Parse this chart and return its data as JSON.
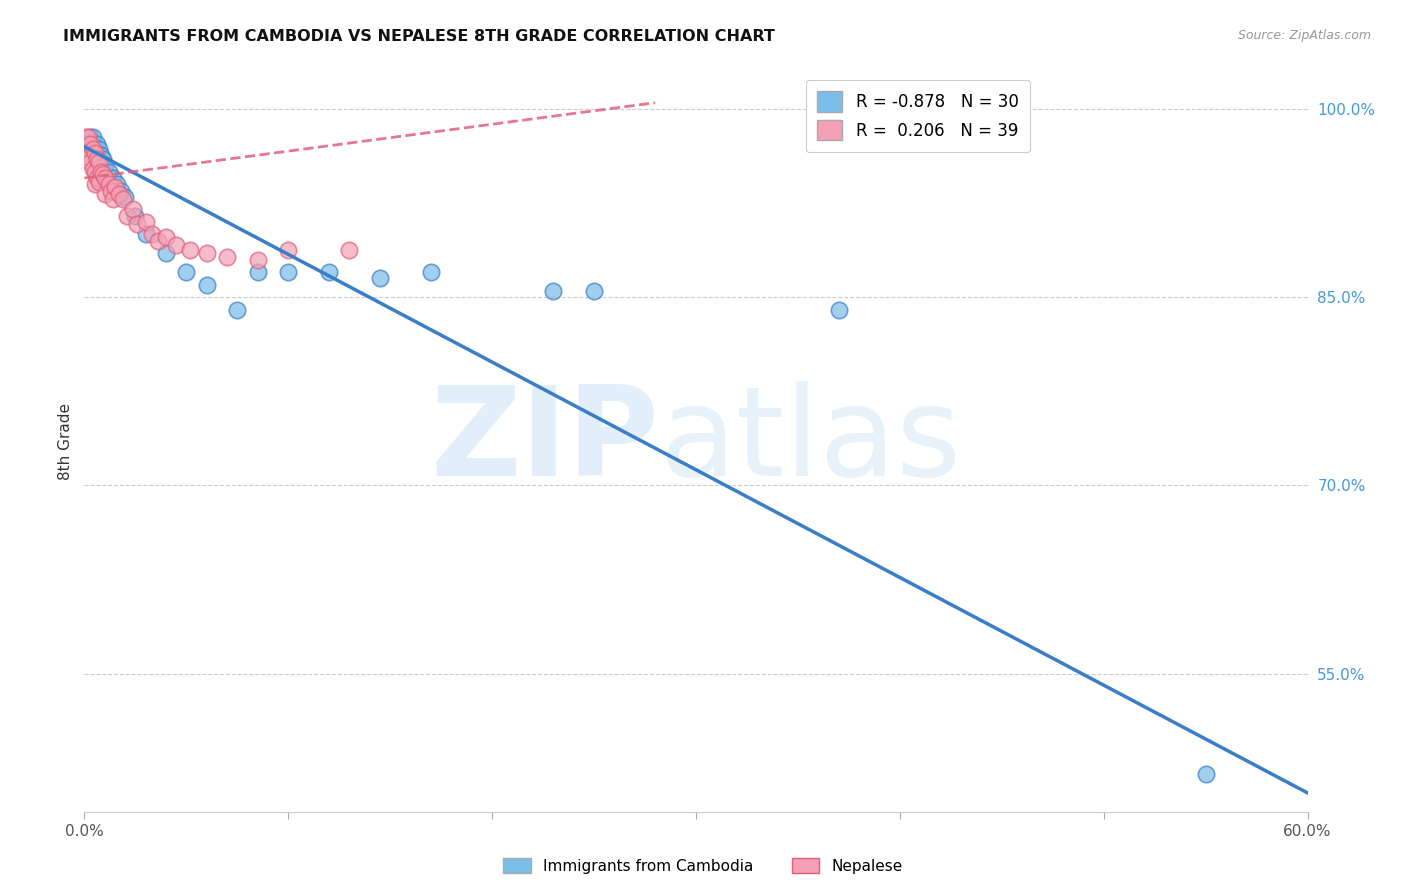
{
  "title": "IMMIGRANTS FROM CAMBODIA VS NEPALESE 8TH GRADE CORRELATION CHART",
  "source": "Source: ZipAtlas.com",
  "ylabel": "8th Grade",
  "x_min": 0.0,
  "x_max": 0.6,
  "y_min": 0.44,
  "y_max": 1.03,
  "y_ticks_right": [
    1.0,
    0.85,
    0.7,
    0.55
  ],
  "y_tick_labels_right": [
    "100.0%",
    "85.0%",
    "70.0%",
    "55.0%"
  ],
  "x_ticks": [
    0.0,
    0.1,
    0.2,
    0.3,
    0.4,
    0.5,
    0.6
  ],
  "legend_blue_label": "Immigrants from Cambodia",
  "legend_pink_label": "Nepalese",
  "R_blue": -0.878,
  "N_blue": 30,
  "R_pink": 0.206,
  "N_pink": 39,
  "blue_color": "#7abde8",
  "blue_line_color": "#3a7dc9",
  "pink_color": "#f4a0b5",
  "pink_line_color": "#e0607a",
  "blue_line_x0": 0.0,
  "blue_line_y0": 0.97,
  "blue_line_x1": 0.6,
  "blue_line_y1": 0.455,
  "pink_line_x0": 0.0,
  "pink_line_y0": 0.945,
  "pink_line_x1": 0.28,
  "pink_line_y1": 1.005,
  "blue_x": [
    0.001,
    0.002,
    0.003,
    0.004,
    0.005,
    0.006,
    0.007,
    0.008,
    0.009,
    0.01,
    0.012,
    0.014,
    0.016,
    0.018,
    0.02,
    0.025,
    0.03,
    0.04,
    0.05,
    0.06,
    0.075,
    0.085,
    0.1,
    0.12,
    0.145,
    0.17,
    0.23,
    0.25,
    0.37,
    0.55
  ],
  "blue_y": [
    0.975,
    0.975,
    0.978,
    0.978,
    0.97,
    0.972,
    0.968,
    0.963,
    0.96,
    0.955,
    0.95,
    0.945,
    0.94,
    0.935,
    0.93,
    0.915,
    0.9,
    0.885,
    0.87,
    0.86,
    0.84,
    0.87,
    0.87,
    0.87,
    0.865,
    0.87,
    0.855,
    0.855,
    0.84,
    0.47
  ],
  "pink_x": [
    0.001,
    0.001,
    0.002,
    0.002,
    0.003,
    0.003,
    0.004,
    0.004,
    0.005,
    0.005,
    0.005,
    0.006,
    0.006,
    0.007,
    0.007,
    0.008,
    0.009,
    0.01,
    0.01,
    0.012,
    0.013,
    0.014,
    0.015,
    0.017,
    0.019,
    0.021,
    0.024,
    0.026,
    0.03,
    0.033,
    0.036,
    0.04,
    0.045,
    0.052,
    0.06,
    0.07,
    0.085,
    0.1,
    0.13
  ],
  "pink_y": [
    0.978,
    0.965,
    0.978,
    0.962,
    0.972,
    0.958,
    0.968,
    0.952,
    0.965,
    0.95,
    0.94,
    0.96,
    0.945,
    0.958,
    0.942,
    0.95,
    0.948,
    0.945,
    0.932,
    0.94,
    0.935,
    0.928,
    0.938,
    0.932,
    0.928,
    0.915,
    0.92,
    0.908,
    0.91,
    0.9,
    0.895,
    0.898,
    0.892,
    0.888,
    0.885,
    0.882,
    0.88,
    0.888,
    0.888
  ],
  "grid_color": "#cccccc",
  "background_color": "#ffffff"
}
